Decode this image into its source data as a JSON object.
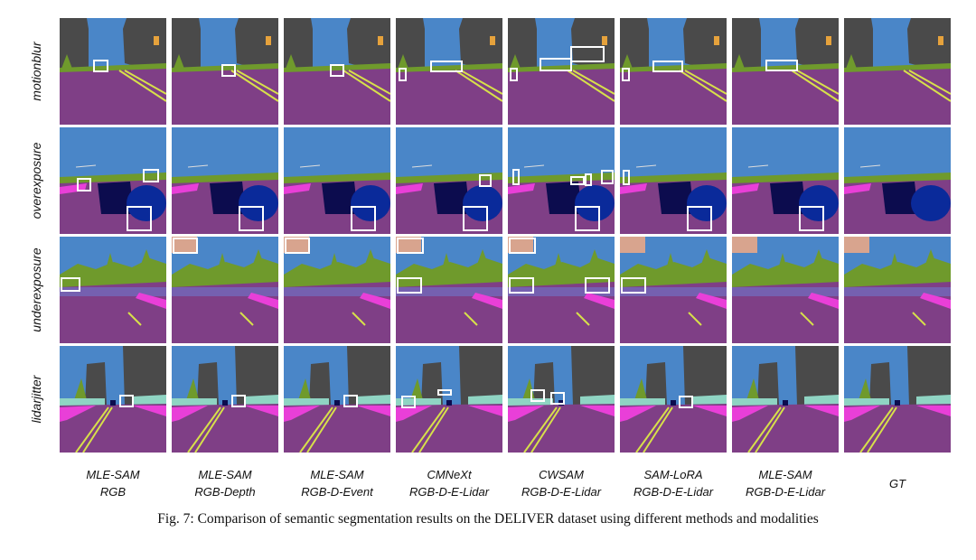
{
  "figure": {
    "row_labels": [
      "motionblur",
      "overexposure",
      "underexposure",
      "lidarjitter"
    ],
    "columns": [
      {
        "method": "MLE-SAM",
        "modality": "RGB"
      },
      {
        "method": "MLE-SAM",
        "modality": "RGB-Depth"
      },
      {
        "method": "MLE-SAM",
        "modality": "RGB-D-Event"
      },
      {
        "method": "CMNeXt",
        "modality": "RGB-D-E-Lidar"
      },
      {
        "method": "CWSAM",
        "modality": "RGB-D-E-Lidar"
      },
      {
        "method": "SAM-LoRA",
        "modality": "RGB-D-E-Lidar"
      },
      {
        "method": "MLE-SAM",
        "modality": "RGB-D-E-Lidar"
      },
      {
        "method": "GT",
        "modality": ""
      }
    ],
    "caption": "Fig. 7: Comparison of semantic segmentation results on the DELIVER dataset using different methods and modalities"
  },
  "colors": {
    "sky": "#4a86c8",
    "road": "#7f3f86",
    "building": "#4a4a4a",
    "vegetation": "#6f9a2c",
    "sidewalk": "#e93fd8",
    "lane_marking": "#d7e04a",
    "vehicle": "#0c0c4e",
    "fence": "#8fd4c3",
    "ground": "#d8a48e",
    "highlight_box": "#ffffff"
  }
}
